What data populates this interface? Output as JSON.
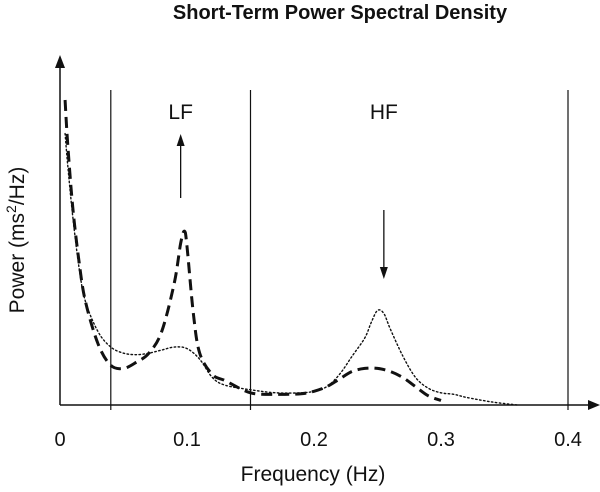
{
  "chart_data": {
    "type": "line",
    "title": "Short-Term Power Spectral Density",
    "xlabel": "Frequency (Hz)",
    "ylabel": {
      "before": "Power (ms",
      "superscript": "2",
      "after": "/Hz)"
    },
    "xlim": [
      0,
      0.42
    ],
    "ylim": [
      0,
      1
    ],
    "grid": false,
    "x_ticks": [
      {
        "value": 0,
        "label": "0"
      },
      {
        "value": 0.1,
        "label": "0.1"
      },
      {
        "value": 0.2,
        "label": "0.2"
      },
      {
        "value": 0.3,
        "label": "0.3"
      },
      {
        "value": 0.4,
        "label": "0.4"
      }
    ],
    "band_boundaries": [
      0.04,
      0.15,
      0.4
    ],
    "bands": [
      {
        "label": "LF",
        "center": 0.095,
        "arrow": "up"
      },
      {
        "label": "HF",
        "center": 0.255,
        "arrow": "down"
      }
    ],
    "series": [
      {
        "style": "dotted",
        "x": [
          0.004,
          0.006,
          0.01,
          0.015,
          0.02,
          0.03,
          0.04,
          0.05,
          0.06,
          0.07,
          0.08,
          0.09,
          0.1,
          0.11,
          0.12,
          0.13,
          0.15,
          0.17,
          0.19,
          0.2,
          0.21,
          0.22,
          0.23,
          0.24,
          0.245,
          0.25,
          0.255,
          0.26,
          0.27,
          0.28,
          0.29,
          0.3,
          0.31,
          0.32,
          0.34,
          0.36
        ],
        "y": [
          0.89,
          0.79,
          0.62,
          0.45,
          0.34,
          0.24,
          0.19,
          0.17,
          0.165,
          0.17,
          0.18,
          0.19,
          0.185,
          0.15,
          0.09,
          0.065,
          0.05,
          0.04,
          0.04,
          0.045,
          0.06,
          0.1,
          0.16,
          0.22,
          0.27,
          0.31,
          0.3,
          0.25,
          0.16,
          0.09,
          0.055,
          0.04,
          0.035,
          0.025,
          0.01,
          0.0
        ]
      },
      {
        "style": "dashed",
        "x": [
          0.004,
          0.006,
          0.01,
          0.015,
          0.02,
          0.03,
          0.04,
          0.05,
          0.06,
          0.07,
          0.08,
          0.09,
          0.095,
          0.098,
          0.1,
          0.105,
          0.11,
          0.12,
          0.13,
          0.15,
          0.17,
          0.19,
          0.2,
          0.21,
          0.22,
          0.23,
          0.24,
          0.25,
          0.26,
          0.27,
          0.28,
          0.29,
          0.3
        ],
        "y": [
          1.0,
          0.86,
          0.65,
          0.47,
          0.34,
          0.2,
          0.13,
          0.12,
          0.14,
          0.17,
          0.24,
          0.4,
          0.53,
          0.57,
          0.52,
          0.3,
          0.17,
          0.1,
          0.08,
          0.04,
          0.035,
          0.037,
          0.045,
          0.06,
          0.085,
          0.11,
          0.12,
          0.12,
          0.11,
          0.09,
          0.06,
          0.03,
          0.015
        ]
      }
    ]
  }
}
